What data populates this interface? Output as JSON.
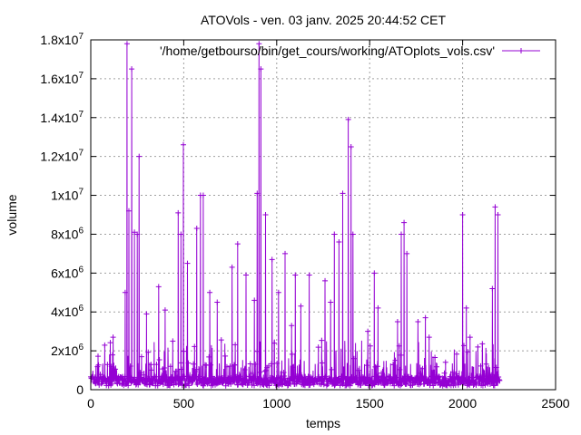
{
  "chart_data": {
    "type": "line",
    "title": "ATOVols - ven. 03 janv. 2025 20:44:52 CET",
    "xlabel": "temps",
    "ylabel": "volume",
    "xlim": [
      0,
      2500
    ],
    "ylim": [
      0,
      18000000
    ],
    "x_ticks": [
      0,
      500,
      1000,
      1500,
      2000,
      2500
    ],
    "x_tick_labels": [
      "0",
      "500",
      "1000",
      "1500",
      "2000",
      "2500"
    ],
    "y_ticks": [
      0,
      2000000,
      4000000,
      6000000,
      8000000,
      10000000,
      12000000,
      14000000,
      16000000,
      18000000
    ],
    "y_tick_labels": [
      {
        "mant": "0",
        "exp": ""
      },
      {
        "mant": "2x10",
        "exp": "6"
      },
      {
        "mant": "4x10",
        "exp": "6"
      },
      {
        "mant": "6x10",
        "exp": "6"
      },
      {
        "mant": "8x10",
        "exp": "6"
      },
      {
        "mant": "1x10",
        "exp": "7"
      },
      {
        "mant": "1.2x10",
        "exp": "7"
      },
      {
        "mant": "1.4x10",
        "exp": "7"
      },
      {
        "mant": "1.6x10",
        "exp": "7"
      },
      {
        "mant": "1.8x10",
        "exp": "7"
      }
    ],
    "grid": true,
    "legend_position": "top-right",
    "series": [
      {
        "name": "'/home/getbourso/bin/get_cours/working/ATOplots_vols.csv'",
        "color": "#9400d3",
        "marker": "plus",
        "x_max": 2200,
        "base_level": 200000,
        "base_level_jitter": 500000,
        "peaks": [
          [
            120,
            2700000
          ],
          [
            185,
            5000000
          ],
          [
            195,
            17800000
          ],
          [
            205,
            9200000
          ],
          [
            220,
            16500000
          ],
          [
            235,
            8100000
          ],
          [
            250,
            8000000
          ],
          [
            260,
            12000000
          ],
          [
            300,
            3900000
          ],
          [
            365,
            5300000
          ],
          [
            400,
            4100000
          ],
          [
            470,
            9100000
          ],
          [
            485,
            8000000
          ],
          [
            498,
            12600000
          ],
          [
            520,
            6500000
          ],
          [
            570,
            8300000
          ],
          [
            590,
            10000000
          ],
          [
            605,
            10000000
          ],
          [
            640,
            5000000
          ],
          [
            680,
            4500000
          ],
          [
            760,
            6300000
          ],
          [
            790,
            7500000
          ],
          [
            835,
            5900000
          ],
          [
            880,
            4600000
          ],
          [
            895,
            10100000
          ],
          [
            905,
            17800000
          ],
          [
            915,
            16500000
          ],
          [
            940,
            9000000
          ],
          [
            975,
            6700000
          ],
          [
            1010,
            5000000
          ],
          [
            1045,
            7000000
          ],
          [
            1080,
            3300000
          ],
          [
            1100,
            5900000
          ],
          [
            1130,
            4300000
          ],
          [
            1175,
            5900000
          ],
          [
            1260,
            5600000
          ],
          [
            1290,
            4500000
          ],
          [
            1310,
            8000000
          ],
          [
            1335,
            7600000
          ],
          [
            1355,
            10100000
          ],
          [
            1385,
            13900000
          ],
          [
            1400,
            12500000
          ],
          [
            1410,
            8000000
          ],
          [
            1490,
            3000000
          ],
          [
            1525,
            6000000
          ],
          [
            1545,
            4200000
          ],
          [
            1650,
            3500000
          ],
          [
            1670,
            8000000
          ],
          [
            1685,
            8600000
          ],
          [
            1700,
            7000000
          ],
          [
            1760,
            3500000
          ],
          [
            1800,
            3700000
          ],
          [
            1820,
            2700000
          ],
          [
            2000,
            9000000
          ],
          [
            2020,
            4200000
          ],
          [
            2040,
            2700000
          ],
          [
            2160,
            5200000
          ],
          [
            2175,
            9400000
          ],
          [
            2190,
            9000000
          ]
        ]
      }
    ]
  }
}
